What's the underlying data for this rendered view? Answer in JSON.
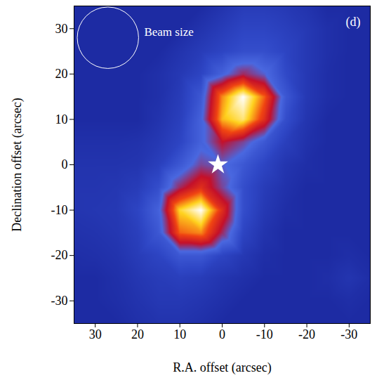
{
  "chart_data": {
    "type": "heatmap",
    "xlabel": "R.A. offset (arcsec)",
    "ylabel": "Declination offset (arcsec)",
    "xlim": [
      35,
      -35
    ],
    "ylim": [
      -35,
      35
    ],
    "xticks": [
      30,
      20,
      10,
      0,
      {
        "value": -10,
        "label": "-10"
      },
      {
        "value": -20,
        "label": "-20"
      },
      {
        "value": -30,
        "label": "-30"
      }
    ],
    "yticks": [
      {
        "value": -30,
        "label": "-30"
      },
      {
        "value": -20,
        "label": "-20"
      },
      {
        "value": -10,
        "label": "-10"
      },
      0,
      10,
      20,
      30
    ],
    "x": [
      35,
      30,
      25,
      20,
      15,
      10,
      5,
      0,
      -5,
      -10,
      -15,
      -20,
      -25,
      -30,
      -35
    ],
    "y": [
      35,
      30,
      25,
      20,
      15,
      10,
      5,
      0,
      -5,
      -10,
      -15,
      -20,
      -25,
      -30,
      -35
    ],
    "cells": [
      [
        0,
        0,
        0,
        0,
        0,
        0,
        0,
        0.05,
        0.1,
        0.1,
        0.08,
        0.05,
        0,
        0,
        0
      ],
      [
        0,
        0,
        0,
        0,
        0,
        0,
        0.05,
        0.1,
        0.15,
        0.15,
        0.12,
        0.08,
        0.03,
        0,
        0
      ],
      [
        0,
        0,
        0,
        0,
        0,
        0.05,
        0.1,
        0.15,
        0.2,
        0.2,
        0.15,
        0.08,
        0.03,
        0,
        0
      ],
      [
        0,
        0,
        0,
        0,
        0.03,
        0.08,
        0.15,
        0.3,
        0.45,
        0.35,
        0.18,
        0.08,
        0.02,
        0,
        0
      ],
      [
        0,
        0,
        0,
        0,
        0.03,
        0.1,
        0.25,
        0.75,
        1,
        0.7,
        0.25,
        0.08,
        0.02,
        0,
        0
      ],
      [
        0,
        0,
        0,
        0,
        0.05,
        0.12,
        0.3,
        0.8,
        0.9,
        0.6,
        0.2,
        0.06,
        0,
        0,
        0
      ],
      [
        0.03,
        0.03,
        0.03,
        0.04,
        0.08,
        0.15,
        0.3,
        0.5,
        0.4,
        0.25,
        0.12,
        0.04,
        0,
        0,
        0
      ],
      [
        0.05,
        0.05,
        0.05,
        0.06,
        0.12,
        0.25,
        0.4,
        0.35,
        0.25,
        0.15,
        0.06,
        0.02,
        0,
        0,
        0
      ],
      [
        0.06,
        0.06,
        0.07,
        0.1,
        0.2,
        0.45,
        0.6,
        0.4,
        0.2,
        0.1,
        0.04,
        0,
        0,
        0,
        0
      ],
      [
        0.06,
        0.07,
        0.08,
        0.15,
        0.3,
        0.85,
        1,
        0.6,
        0.2,
        0.08,
        0.02,
        0,
        0,
        0,
        0
      ],
      [
        0.04,
        0.05,
        0.07,
        0.12,
        0.25,
        0.7,
        0.75,
        0.45,
        0.15,
        0.05,
        0,
        0,
        0,
        0,
        0
      ],
      [
        0.02,
        0.03,
        0.05,
        0.1,
        0.15,
        0.25,
        0.25,
        0.15,
        0.08,
        0.02,
        0,
        0,
        0,
        0.02,
        0
      ],
      [
        0,
        0,
        0.03,
        0.07,
        0.1,
        0.12,
        0.1,
        0.06,
        0.03,
        0,
        0,
        0,
        0.02,
        0.06,
        0.02
      ],
      [
        0,
        0,
        0.02,
        0.05,
        0.08,
        0.08,
        0.06,
        0.03,
        0,
        0,
        0,
        0,
        0,
        0.02,
        0
      ],
      [
        0,
        0,
        0,
        0.03,
        0.05,
        0.05,
        0.03,
        0,
        0,
        0,
        0,
        0,
        0,
        0,
        0
      ]
    ],
    "beam": {
      "label": "Beam size",
      "x": 27,
      "y": 28,
      "diameter": 14.5
    },
    "star": {
      "x": 1,
      "y": 0
    },
    "panel_label": "(d)"
  }
}
